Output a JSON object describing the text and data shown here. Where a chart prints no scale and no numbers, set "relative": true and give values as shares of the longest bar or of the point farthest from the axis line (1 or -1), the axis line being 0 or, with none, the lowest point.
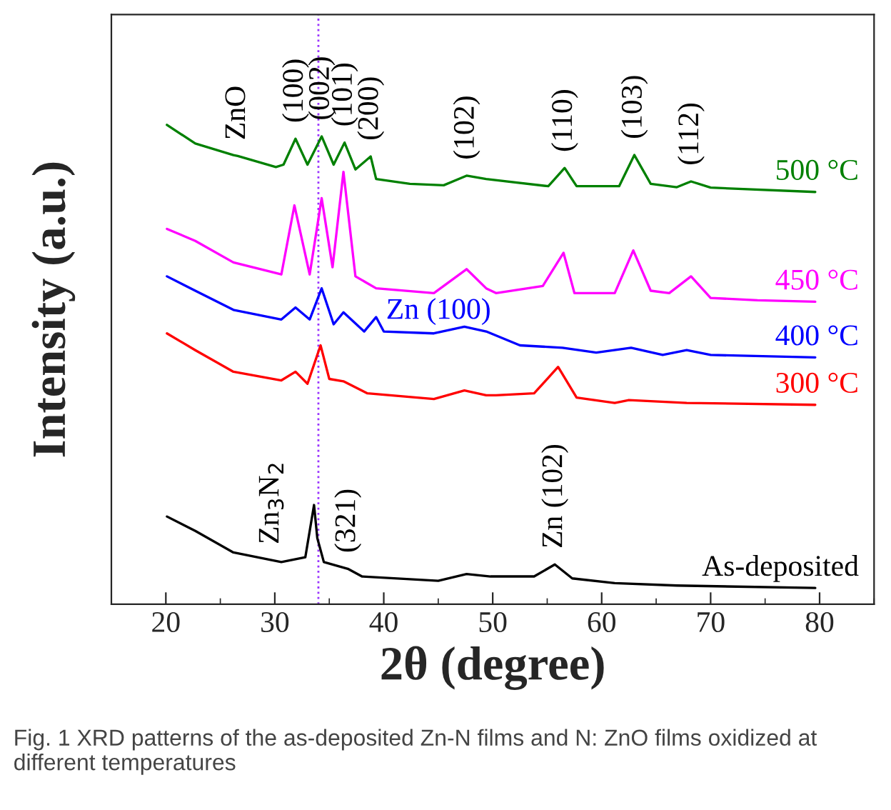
{
  "chart_data": {
    "type": "line",
    "relative": true,
    "xlabel": "2θ (degree)",
    "ylabel": "Intensity (a.u.)",
    "xlim": [
      15,
      85
    ],
    "xticks": [
      20,
      30,
      40,
      50,
      60,
      70,
      80
    ],
    "grid": false,
    "legend": false,
    "marker": "none",
    "line_style": "solid",
    "series": [
      {
        "name": "500 °C",
        "color": "#008000",
        "x": [
          20.1,
          22.7,
          26.2,
          26.6,
          30.1,
          30.8,
          31.9,
          33.0,
          34.3,
          35.4,
          36.4,
          37.4,
          38.8,
          39.3,
          42.4,
          45.5,
          47.6,
          49.4,
          55.1,
          56.6,
          57.7,
          61.6,
          63.0,
          64.5,
          66.9,
          68.2,
          70.0,
          79.6
        ],
        "values": [
          1.0,
          0.961,
          0.937,
          0.935,
          0.912,
          0.917,
          0.971,
          0.917,
          0.976,
          0.917,
          0.963,
          0.907,
          0.934,
          0.887,
          0.877,
          0.874,
          0.894,
          0.887,
          0.872,
          0.91,
          0.872,
          0.872,
          0.937,
          0.877,
          0.87,
          0.882,
          0.869,
          0.86
        ]
      },
      {
        "name": "450 °C",
        "color": "#ff00ff",
        "x": [
          20.1,
          22.7,
          26.2,
          30.6,
          31.8,
          33.2,
          34.3,
          35.3,
          36.3,
          37.4,
          39.3,
          44.6,
          47.6,
          49.4,
          50.3,
          54.6,
          56.5,
          57.5,
          61.2,
          62.9,
          64.5,
          66.2,
          68.2,
          70.0,
          74.3,
          79.6
        ],
        "values": [
          0.783,
          0.758,
          0.713,
          0.688,
          0.832,
          0.688,
          0.847,
          0.703,
          0.902,
          0.684,
          0.659,
          0.649,
          0.699,
          0.659,
          0.649,
          0.664,
          0.733,
          0.649,
          0.649,
          0.738,
          0.654,
          0.649,
          0.684,
          0.639,
          0.634,
          0.631
        ]
      },
      {
        "name": "400 °C",
        "color": "#0000ff",
        "x": [
          20.1,
          22.7,
          26.2,
          30.6,
          31.9,
          33.2,
          34.3,
          35.4,
          36.3,
          38.2,
          39.3,
          40.0,
          44.6,
          47.4,
          49.4,
          52.5,
          56.4,
          59.5,
          62.7,
          65.6,
          67.8,
          70.0,
          79.6
        ],
        "values": [
          0.684,
          0.654,
          0.614,
          0.594,
          0.619,
          0.594,
          0.659,
          0.584,
          0.609,
          0.569,
          0.599,
          0.569,
          0.565,
          0.579,
          0.569,
          0.54,
          0.535,
          0.525,
          0.535,
          0.52,
          0.53,
          0.52,
          0.515
        ]
      },
      {
        "name": "300 °C",
        "color": "#ff0000",
        "x": [
          20.1,
          22.7,
          26.2,
          30.6,
          31.9,
          33.0,
          34.2,
          35.0,
          36.3,
          38.5,
          44.6,
          47.4,
          49.4,
          50.3,
          53.8,
          56.0,
          57.7,
          61.2,
          62.5,
          67.8,
          79.6
        ],
        "values": [
          0.565,
          0.53,
          0.485,
          0.467,
          0.485,
          0.46,
          0.54,
          0.47,
          0.465,
          0.44,
          0.428,
          0.446,
          0.436,
          0.436,
          0.44,
          0.495,
          0.431,
          0.42,
          0.426,
          0.42,
          0.416
        ]
      },
      {
        "name": "As-deposited",
        "color": "#000000",
        "x": [
          20.1,
          22.7,
          26.2,
          29.7,
          30.6,
          32.8,
          33.6,
          33.9,
          34.5,
          36.7,
          38.0,
          45.0,
          47.6,
          49.8,
          53.8,
          55.7,
          57.3,
          61.2,
          66.9,
          79.6
        ],
        "values": [
          0.183,
          0.153,
          0.108,
          0.092,
          0.088,
          0.098,
          0.207,
          0.138,
          0.088,
          0.074,
          0.058,
          0.049,
          0.063,
          0.058,
          0.058,
          0.083,
          0.054,
          0.044,
          0.039,
          0.034
        ]
      }
    ],
    "ref_lines": [
      {
        "axis": "x",
        "value": 34,
        "color": "#9933ff",
        "line_style": "dotted"
      }
    ],
    "annotations": [
      {
        "text": "ZnO",
        "x": 26.6,
        "y": 0.935
      },
      {
        "text": "(100)",
        "x": 31.9,
        "y": 0.971
      },
      {
        "text": "(002)",
        "x": 34.3,
        "y": 0.976
      },
      {
        "text": "(101)",
        "x": 36.4,
        "y": 0.963
      },
      {
        "text": "(200)",
        "x": 38.8,
        "y": 0.934
      },
      {
        "text": "(102)",
        "x": 47.6,
        "y": 0.894
      },
      {
        "text": "(110)",
        "x": 56.6,
        "y": 0.91
      },
      {
        "text": "(103)",
        "x": 63.0,
        "y": 0.937
      },
      {
        "text": "(112)",
        "x": 68.2,
        "y": 0.882
      },
      {
        "text": "Zn$_{3}$N$_{2}$",
        "x": 29.7,
        "y": 0.092
      },
      {
        "text": "(321)",
        "x": 36.7,
        "y": 0.074
      },
      {
        "text": "Zn (102)",
        "x": 55.7,
        "y": 0.083
      },
      {
        "text": "Zn (100)",
        "x": 39.3,
        "y": 0.599
      },
      "Fig. 1 XRD patterns of the as-deposited Zn-N films and N: ZnO films oxidized at different temperatures"
    ]
  }
}
